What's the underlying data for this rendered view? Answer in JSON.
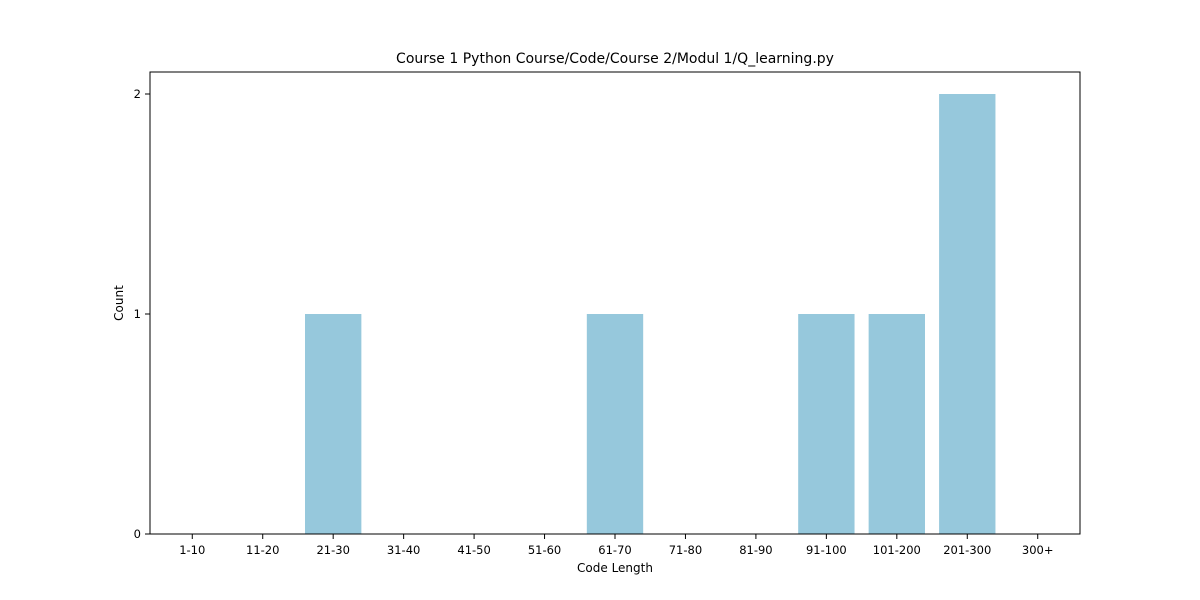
{
  "chart_data": {
    "type": "bar",
    "title": "Course 1 Python Course/Code/Course 2/Modul 1/Q_learning.py",
    "xlabel": "Code Length",
    "ylabel": "Count",
    "categories": [
      "1-10",
      "11-20",
      "21-30",
      "31-40",
      "41-50",
      "51-60",
      "61-70",
      "71-80",
      "81-90",
      "91-100",
      "101-200",
      "201-300",
      "300+"
    ],
    "values": [
      0,
      0,
      1,
      0,
      0,
      0,
      1,
      0,
      0,
      1,
      1,
      2,
      0
    ],
    "ylim": [
      0,
      2.1
    ],
    "yticks": [
      0,
      1,
      2
    ],
    "grid": false,
    "colors": {
      "bar": "#96c8dc",
      "axis": "#000000"
    }
  }
}
